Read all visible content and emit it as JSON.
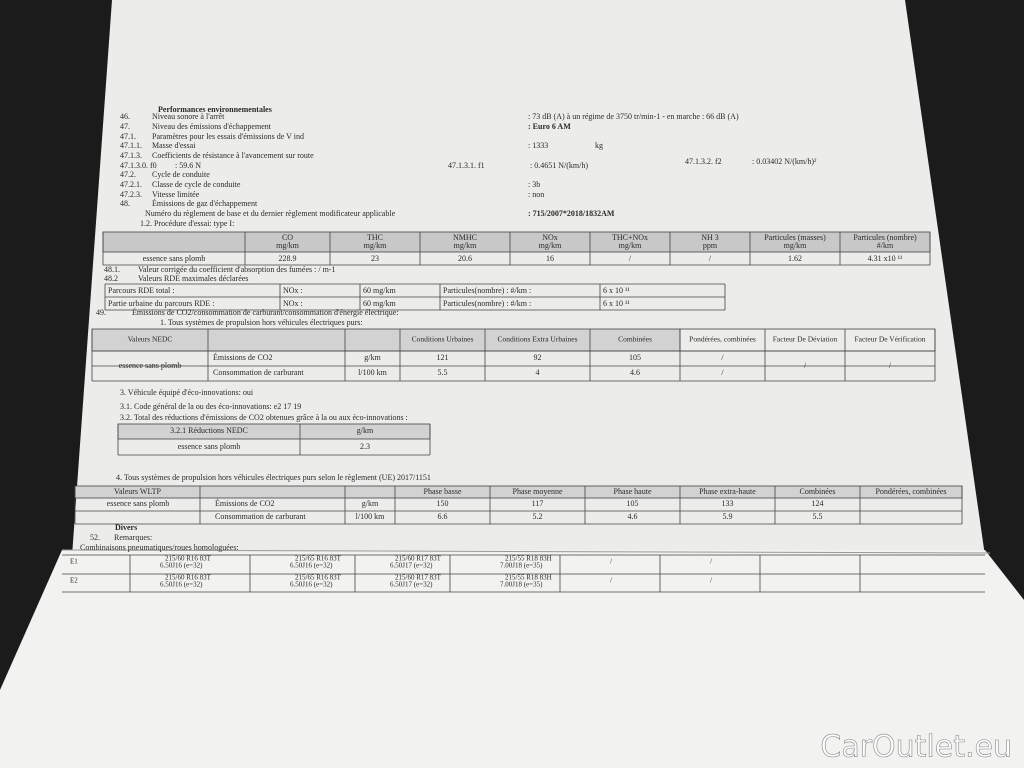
{
  "section_title": "Performances environnementales",
  "items": [
    {
      "num": "46.",
      "label": "Niveau sonore à l'arrêt",
      "value": ": 73 dB (A)   à un régime de 3750 tr/min-1 - en marche : 66 dB (A)"
    },
    {
      "num": "47.",
      "label": "Niveau des émissions d'échappement",
      "value": ": Euro 6 AM"
    },
    {
      "num": "47.1.",
      "label": "Paramètres pour les essais d'émissions de V ind"
    },
    {
      "num": "47.1.1.",
      "label": "Masse d'essai",
      "value": ": 1333",
      "unit": "kg"
    },
    {
      "num": "47.1.3.",
      "label": "Coefficients de résistance à l'avancement sur route"
    },
    {
      "num": "47.1.3.0. f0",
      "label": ": 59.6 N",
      "f1_label": "47.1.3.1. f1",
      "f1_value": ": 0.4651 N/(km/h)",
      "f2_label": "47.1.3.2. f2",
      "f2_value": ": 0.03402 N/(km/h)²"
    },
    {
      "num": "47.2.",
      "label": "Cycle de conduite"
    },
    {
      "num": "47.2.1.",
      "label": "Classe de cycle de conduite",
      "value": ": 3b"
    },
    {
      "num": "47.2.3.",
      "label": "Vitesse limitée",
      "value": ": non"
    },
    {
      "num": "48.",
      "label": "Émissions de gaz d'échappement"
    },
    {
      "label": "Numéro du règlement de base et du dernier règlement modificateur applicable",
      "value": ": 715/2007*2018/1832AM"
    },
    {
      "label": "1.2. Procédure d'essai: type I:"
    }
  ],
  "emissions_table": {
    "headers": [
      [
        "CO",
        "mg/km"
      ],
      [
        "THC",
        "mg/km"
      ],
      [
        "NMHC",
        "mg/km"
      ],
      [
        "NOx",
        "mg/km"
      ],
      [
        "THC+NOx",
        "mg/km"
      ],
      [
        "NH 3",
        "ppm"
      ],
      [
        "Particules (masses)",
        "mg/km"
      ],
      [
        "Particules (nombre)",
        "#/km"
      ]
    ],
    "row": [
      "essence sans plomb",
      "228.9",
      "23",
      "20.6",
      "16",
      "/",
      "/",
      "1.62",
      "4.31 x10 ¹¹"
    ]
  },
  "item_48_1": {
    "num": "48.1.",
    "label": "Valeur corrigée du coefficient d'absorption des fumées : / m-1"
  },
  "item_48_2": {
    "num": "48.2",
    "label": "Valeurs RDE maximales déclarées"
  },
  "rde_table": {
    "rows": [
      [
        "Parcours RDE total :",
        "NOx :",
        "60 mg/km",
        "Particules(nombre) : #/km :",
        "6 x 10 ¹¹"
      ],
      [
        "Partie urbaine du parcours RDE :",
        "NOx :",
        "60 mg/km",
        "Particules(nombre) : #/km :",
        "6 x 10 ¹¹"
      ]
    ]
  },
  "item_49": {
    "num": "49.",
    "label": "Émissions de CO2/consommation de carburant/consommation d'énergie électrique:"
  },
  "nedc_intro": "1. Tous systèmes de propulsion hors véhicules électriques purs:",
  "nedc_table": {
    "headers": [
      "Valeurs NEDC",
      "Conditions Urbaines",
      "Conditions Extra Urbaines",
      "Combinées",
      "Pondérées, combinées",
      "Facteur De Déviation",
      "Facteur De Vérification"
    ],
    "fuel": "essence sans plomb",
    "rows": [
      [
        "Émissions de CO2",
        "g/km",
        "121",
        "92",
        "105",
        "/"
      ],
      [
        "Consommation de carburant",
        "l/100 km",
        "5.5",
        "4",
        "4.6",
        "/"
      ]
    ],
    "deviation": "/",
    "verification": "/"
  },
  "eco": {
    "equipped": "3. Véhicule équipé d'éco-innovations: oui",
    "code": "3.1. Code général de la ou des éco-innovations: e2 17 19",
    "total": "3.2. Total des réductions d'émissions de CO2 obtenues grâce à la ou aux éco-innovations :"
  },
  "eco_table": {
    "headers": [
      "3.2.1 Réductions NEDC",
      "g/km"
    ],
    "row": [
      "essence sans plomb",
      "2.3"
    ]
  },
  "wltp_intro": "4. Tous systèmes de propulsion hors véhicules électriques purs selon le règlement (UE) 2017/1151",
  "wltp_table": {
    "headers": [
      "Valeurs WLTP",
      "Phase basse",
      "Phase moyenne",
      "Phase haute",
      "Phase extra-haute",
      "Combinées",
      "Pondérées, combinées"
    ],
    "fuel": "essence sans plomb",
    "rows": [
      [
        "Émissions de CO2",
        "g/km",
        "150",
        "117",
        "105",
        "133",
        "124"
      ],
      [
        "Consommation de carburant",
        "l/100 km",
        "6.6",
        "5.2",
        "4.6",
        "5.9",
        "5.5"
      ]
    ]
  },
  "divers": {
    "title": "Divers",
    "num": "52.",
    "remarks": "Remarques:",
    "tires_label": "Combinaisons pneumatiques/roues homologuées:"
  },
  "tires": [
    {
      "code": "E1",
      "cells": [
        [
          "215/60 R16 83T",
          "6.50J16 (e=32)"
        ],
        [
          "215/65 R16 83T",
          "6.50J16 (e=32)"
        ],
        [
          "215/60 R17 83T",
          "6.50J17 (e=32)"
        ],
        [
          "215/55 R18 83H",
          "7.00J18 (e=35)"
        ]
      ],
      "marks": [
        "/",
        "/"
      ]
    },
    {
      "code": "E2",
      "cells": [
        [
          "215/60 R16 83T",
          "6.50J16 (e=32)"
        ],
        [
          "215/65 R16 83T",
          "6.50J16 (e=32)"
        ],
        [
          "215/60 R17 83T",
          "6.50J17 (e=32)"
        ],
        [
          "215/55 R18 83H",
          "7.00J18 (e=35)"
        ]
      ],
      "marks": [
        "/",
        "/"
      ]
    }
  ],
  "watermark": "CarOutlet.eu"
}
